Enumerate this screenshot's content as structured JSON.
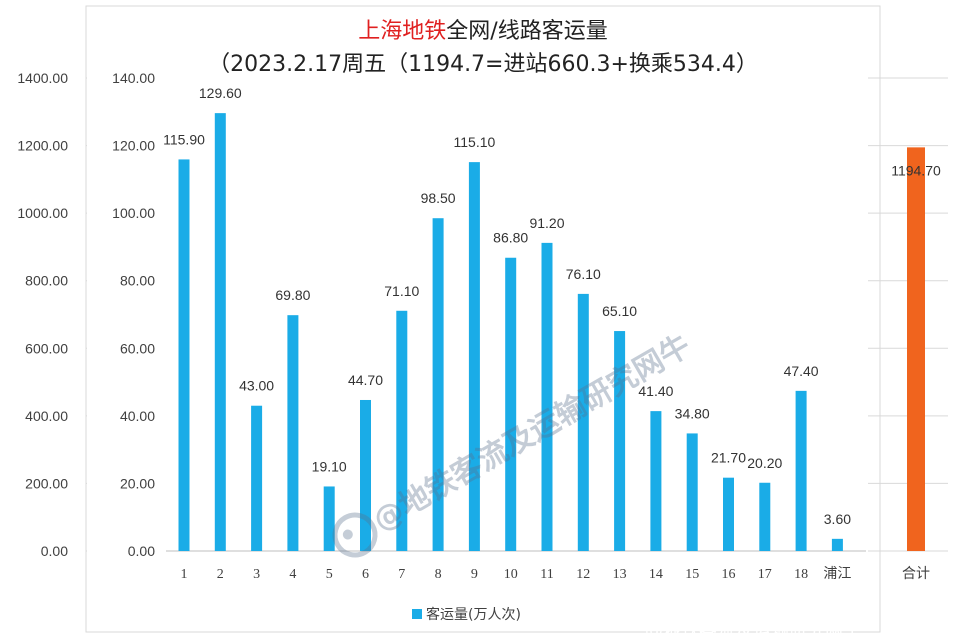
{
  "chart_data": [
    {
      "type": "bar",
      "title_part1": "上海地铁",
      "title_part2": "全网/线路客运量",
      "subtitle": "（2023.2.17周五（1194.7=进站660.3+换乘534.4）",
      "categories": [
        "1",
        "2",
        "3",
        "4",
        "5",
        "6",
        "7",
        "8",
        "9",
        "10",
        "11",
        "12",
        "13",
        "14",
        "15",
        "16",
        "17",
        "18",
        "浦江"
      ],
      "series": [
        {
          "name": "客运量(万人次)",
          "color": "#1aace7",
          "values": [
            115.9,
            129.6,
            43.0,
            69.8,
            19.1,
            44.7,
            71.1,
            98.5,
            115.1,
            86.8,
            91.2,
            76.1,
            65.1,
            41.4,
            34.8,
            21.7,
            20.2,
            47.4,
            3.6
          ],
          "labels": [
            "115.90",
            "129.60",
            "43.00",
            "69.80",
            "19.10",
            "44.70",
            "71.10",
            "98.50",
            "115.10",
            "86.80",
            "91.20",
            "76.10",
            "65.10",
            "41.40",
            "34.80",
            "21.70",
            "20.20",
            "47.40",
            "3.60"
          ]
        }
      ],
      "ylim": [
        0,
        140
      ],
      "yticks": [
        "0.00",
        "20.00",
        "40.00",
        "60.00",
        "80.00",
        "100.00",
        "120.00",
        "140.00"
      ],
      "legend_position": "bottom",
      "grid": false
    },
    {
      "type": "bar",
      "categories": [
        "合计"
      ],
      "values": [
        1194.7
      ],
      "labels": [
        "1194.70"
      ],
      "color": "#f0641e",
      "ylim": [
        0,
        1400
      ],
      "yticks": [
        "0.00",
        "200.00",
        "400.00",
        "600.00",
        "800.00",
        "1000.00",
        "1200.00",
        "1400.00"
      ],
      "grid": true
    }
  ],
  "watermark": "@地铁客流及运输研究网牛",
  "footer": {
    "credit1": "知乎 @子安",
    "credit2": "@地铁客流及运输研究网牛"
  }
}
